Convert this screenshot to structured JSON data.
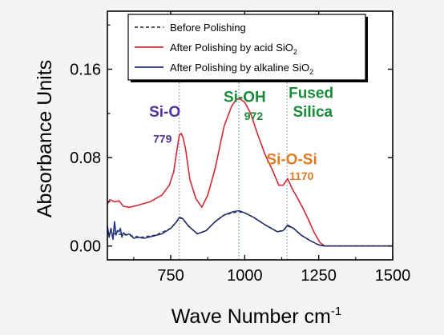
{
  "chart_data": {
    "type": "line",
    "xlabel": "Wave Number cm",
    "xlabel_sup": "-1",
    "ylabel": "Absorbance Units",
    "xlim": [
      536,
      1500
    ],
    "ylim": [
      -0.0125,
      0.2125
    ],
    "xticks": [
      750,
      1000,
      1250,
      1500
    ],
    "yticks": [
      0.0,
      0.08,
      0.16
    ],
    "ytick_labels": [
      "0.00",
      "0.08",
      "0.16"
    ],
    "legend": {
      "placement": "top-left",
      "entries": [
        {
          "label": "Before Polishing",
          "sub": "",
          "color": "#222222",
          "dash": true
        },
        {
          "label": "After Polishing by acid SiO",
          "sub": "2",
          "color": "#d02a36",
          "dash": false
        },
        {
          "label": "After Polishing by alkaline SiO",
          "sub": "2",
          "color": "#22338a",
          "dash": false
        }
      ]
    },
    "series": [
      {
        "name": "After Polishing by acid SiO2",
        "color": "#d02a36",
        "x": [
          536,
          545,
          560,
          575,
          590,
          610,
          640,
          680,
          720,
          745,
          760,
          770,
          779,
          785,
          792,
          800,
          815,
          835,
          855,
          875,
          900,
          930,
          955,
          972,
          985,
          1000,
          1020,
          1045,
          1070,
          1095,
          1115,
          1130,
          1145,
          1160,
          1175,
          1195,
          1215,
          1235,
          1255,
          1270,
          1290,
          1310,
          1350,
          1400,
          1450,
          1500
        ],
        "y": [
          0.038,
          0.042,
          0.04,
          0.041,
          0.036,
          0.035,
          0.037,
          0.04,
          0.046,
          0.055,
          0.067,
          0.085,
          0.1,
          0.102,
          0.098,
          0.088,
          0.06,
          0.043,
          0.035,
          0.046,
          0.07,
          0.108,
          0.126,
          0.133,
          0.133,
          0.13,
          0.12,
          0.1,
          0.082,
          0.068,
          0.055,
          0.055,
          0.061,
          0.052,
          0.045,
          0.035,
          0.024,
          0.012,
          0.003,
          0.0,
          0.0,
          0.0,
          0.0,
          0.0,
          0.0,
          0.0
        ]
      },
      {
        "name": "After Polishing by alkaline SiO2",
        "color": "#22338a",
        "x": [
          536,
          542,
          548,
          555,
          560,
          565,
          570,
          575,
          580,
          585,
          590,
          600,
          610,
          625,
          640,
          660,
          690,
          720,
          750,
          770,
          779,
          790,
          810,
          840,
          870,
          900,
          930,
          960,
          980,
          1000,
          1030,
          1070,
          1110,
          1130,
          1145,
          1165,
          1190,
          1220,
          1250,
          1270,
          1300,
          1400,
          1500
        ],
        "y": [
          0.018,
          0.008,
          0.016,
          0.006,
          0.022,
          0.01,
          0.014,
          0.013,
          0.016,
          0.008,
          0.012,
          0.01,
          0.011,
          0.007,
          0.008,
          0.007,
          0.009,
          0.011,
          0.016,
          0.022,
          0.026,
          0.025,
          0.018,
          0.011,
          0.014,
          0.022,
          0.028,
          0.031,
          0.032,
          0.03,
          0.026,
          0.019,
          0.013,
          0.014,
          0.019,
          0.016,
          0.01,
          0.005,
          0.001,
          0.0,
          0.0,
          0.0,
          0.0
        ]
      },
      {
        "name": "Before Polishing",
        "color": "#222222",
        "dash": true,
        "x": [
          536,
          560,
          600,
          650,
          700,
          750,
          770,
          779,
          790,
          810,
          840,
          870,
          900,
          930,
          960,
          980,
          1000,
          1030,
          1070,
          1110,
          1130,
          1145,
          1165,
          1190,
          1220,
          1250,
          1270,
          1300,
          1400,
          1500
        ],
        "y": [
          0.011,
          0.011,
          0.01,
          0.008,
          0.01,
          0.016,
          0.022,
          0.025,
          0.025,
          0.018,
          0.011,
          0.014,
          0.022,
          0.028,
          0.03,
          0.031,
          0.03,
          0.026,
          0.019,
          0.013,
          0.014,
          0.018,
          0.016,
          0.01,
          0.005,
          0.001,
          0.0,
          0.0,
          0.0,
          0.0
        ]
      }
    ],
    "reference_lines": [
      {
        "x": 779,
        "color": "#7d8fa6"
      },
      {
        "x": 980,
        "color": "#6fa38a"
      },
      {
        "x": 1143,
        "color": "#7d9fb0"
      }
    ],
    "annotations": [
      {
        "text": "Si-O",
        "size": "big",
        "color": "#55339a",
        "x": 730,
        "y": 0.117
      },
      {
        "text": "779",
        "size": "small",
        "color": "#55339a",
        "x": 722,
        "y": 0.0935
      },
      {
        "text": "Si-OH",
        "size": "big",
        "color": "#1a8a3a",
        "x": 1000,
        "y": 0.1305
      },
      {
        "text": "972",
        "size": "small",
        "color": "#1a8a3a",
        "x": 1030,
        "y": 0.114
      },
      {
        "text": "Fused",
        "size": "big",
        "color": "#1a8a3a",
        "x": 1224,
        "y": 0.134
      },
      {
        "text": "Silica",
        "size": "big",
        "color": "#1a8a3a",
        "x": 1230,
        "y": 0.117
      },
      {
        "text": "Si-O-Si",
        "size": "big",
        "color": "#e07a22",
        "x": 1159,
        "y": 0.074
      },
      {
        "text": "1170",
        "size": "small",
        "color": "#e07a22",
        "x": 1192,
        "y": 0.06
      }
    ]
  }
}
